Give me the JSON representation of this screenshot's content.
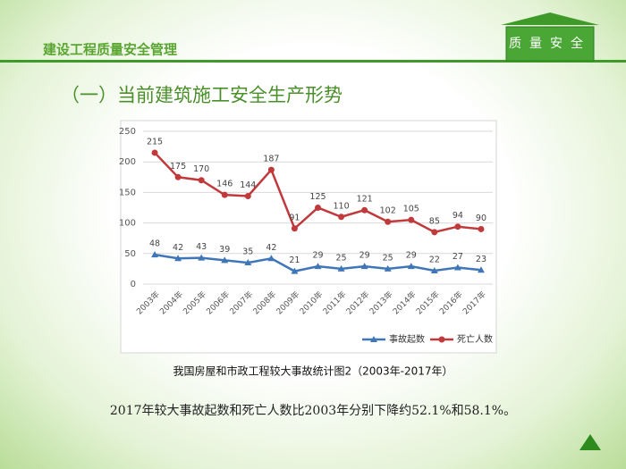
{
  "header": {
    "title": "建设工程质量安全管理",
    "logo": "质量安全"
  },
  "heading": "（一）当前建筑施工安全生产形势",
  "caption": "我国房屋和市政工程较大事故统计图2（2003年-2017年）",
  "body": "2017年较大事故起数和死亡人数比2003年分别下降约52.1%和58.1%。",
  "chart_data": {
    "type": "line",
    "categories": [
      "2003年",
      "2004年",
      "2005年",
      "2006年",
      "2007年",
      "2008年",
      "2009年",
      "2010年",
      "2011年",
      "2012年",
      "2013年",
      "2014年",
      "2015年",
      "2016年",
      "2017年"
    ],
    "series": [
      {
        "name": "事故起数",
        "color": "#3f76b8",
        "values": [
          48,
          42,
          43,
          39,
          35,
          42,
          21,
          29,
          25,
          29,
          25,
          29,
          22,
          27,
          23
        ]
      },
      {
        "name": "死亡人数",
        "color": "#c0393b",
        "values": [
          215,
          175,
          170,
          146,
          144,
          187,
          91,
          125,
          110,
          121,
          102,
          105,
          85,
          94,
          90
        ]
      }
    ],
    "ylim": [
      0,
      250
    ],
    "yticks": [
      0,
      50,
      100,
      150,
      200,
      250
    ],
    "grid": true,
    "legend": "bottom"
  }
}
